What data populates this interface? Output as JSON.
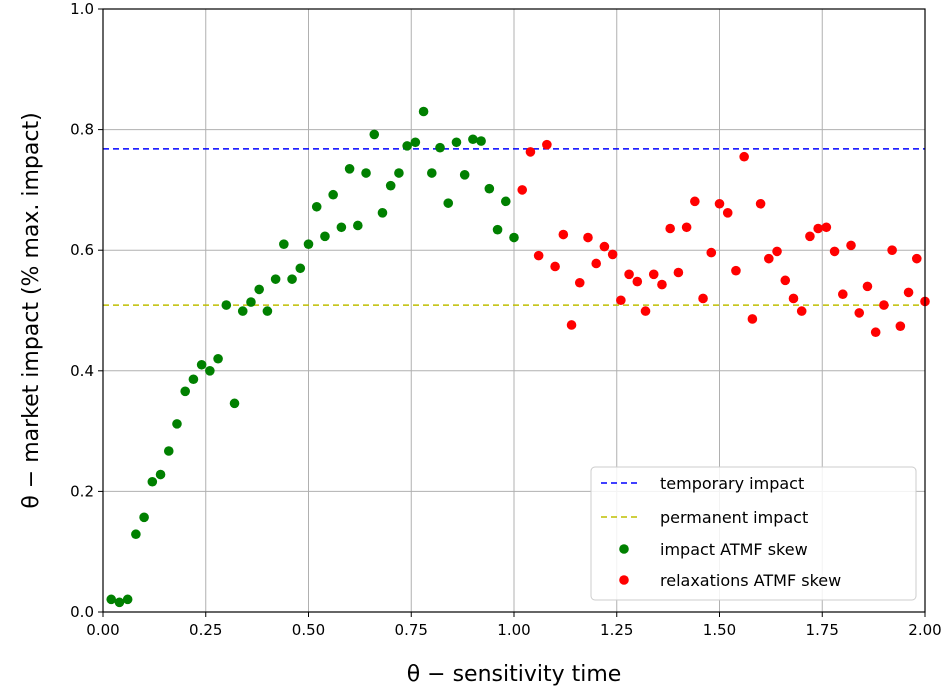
{
  "chart_data": {
    "type": "scatter",
    "xlabel": "θ − sensitivity time",
    "ylabel": "θ − market impact (% max. impact)",
    "xlim": [
      0,
      2.0
    ],
    "ylim": [
      0,
      1.0
    ],
    "xticks": [
      0.0,
      0.25,
      0.5,
      0.75,
      1.0,
      1.25,
      1.5,
      1.75,
      2.0
    ],
    "yticks": [
      0.0,
      0.2,
      0.4,
      0.6,
      0.8,
      1.0
    ],
    "xtick_labels": [
      "0.00",
      "0.25",
      "0.50",
      "0.75",
      "1.00",
      "1.25",
      "1.50",
      "1.75",
      "2.00"
    ],
    "ytick_labels": [
      "0.0",
      "0.2",
      "0.4",
      "0.6",
      "0.8",
      "1.0"
    ],
    "grid": true,
    "legend_position": "lower-right",
    "lines": [
      {
        "name": "temporary impact",
        "y": 0.768,
        "color": "#0000ff",
        "style": "dashed"
      },
      {
        "name": "permanent impact",
        "y": 0.509,
        "color": "#bfbf00",
        "style": "dashed"
      }
    ],
    "series": [
      {
        "name": "impact ATMF skew",
        "color": "#008000",
        "points": [
          [
            0.02,
            0.021
          ],
          [
            0.04,
            0.016
          ],
          [
            0.06,
            0.021
          ],
          [
            0.08,
            0.129
          ],
          [
            0.1,
            0.157
          ],
          [
            0.12,
            0.216
          ],
          [
            0.14,
            0.228
          ],
          [
            0.16,
            0.267
          ],
          [
            0.18,
            0.312
          ],
          [
            0.2,
            0.366
          ],
          [
            0.22,
            0.386
          ],
          [
            0.24,
            0.41
          ],
          [
            0.26,
            0.4
          ],
          [
            0.28,
            0.42
          ],
          [
            0.3,
            0.509
          ],
          [
            0.32,
            0.346
          ],
          [
            0.34,
            0.499
          ],
          [
            0.36,
            0.514
          ],
          [
            0.38,
            0.535
          ],
          [
            0.4,
            0.499
          ],
          [
            0.42,
            0.552
          ],
          [
            0.44,
            0.61
          ],
          [
            0.46,
            0.552
          ],
          [
            0.48,
            0.57
          ],
          [
            0.5,
            0.61
          ],
          [
            0.52,
            0.672
          ],
          [
            0.54,
            0.623
          ],
          [
            0.56,
            0.692
          ],
          [
            0.58,
            0.638
          ],
          [
            0.6,
            0.735
          ],
          [
            0.62,
            0.641
          ],
          [
            0.64,
            0.728
          ],
          [
            0.66,
            0.792
          ],
          [
            0.68,
            0.662
          ],
          [
            0.7,
            0.707
          ],
          [
            0.72,
            0.728
          ],
          [
            0.74,
            0.773
          ],
          [
            0.76,
            0.779
          ],
          [
            0.78,
            0.83
          ],
          [
            0.8,
            0.728
          ],
          [
            0.82,
            0.77
          ],
          [
            0.84,
            0.678
          ],
          [
            0.86,
            0.779
          ],
          [
            0.88,
            0.725
          ],
          [
            0.9,
            0.784
          ],
          [
            0.92,
            0.781
          ],
          [
            0.94,
            0.702
          ],
          [
            0.96,
            0.634
          ],
          [
            0.98,
            0.681
          ],
          [
            1.0,
            0.621
          ]
        ]
      },
      {
        "name": "relaxations ATMF skew",
        "color": "#ff0000",
        "points": [
          [
            1.02,
            0.7
          ],
          [
            1.04,
            0.763
          ],
          [
            1.06,
            0.591
          ],
          [
            1.08,
            0.775
          ],
          [
            1.1,
            0.573
          ],
          [
            1.12,
            0.626
          ],
          [
            1.14,
            0.476
          ],
          [
            1.16,
            0.546
          ],
          [
            1.18,
            0.621
          ],
          [
            1.2,
            0.578
          ],
          [
            1.22,
            0.606
          ],
          [
            1.24,
            0.593
          ],
          [
            1.26,
            0.517
          ],
          [
            1.28,
            0.56
          ],
          [
            1.3,
            0.548
          ],
          [
            1.32,
            0.499
          ],
          [
            1.34,
            0.56
          ],
          [
            1.36,
            0.543
          ],
          [
            1.38,
            0.636
          ],
          [
            1.4,
            0.563
          ],
          [
            1.42,
            0.638
          ],
          [
            1.44,
            0.681
          ],
          [
            1.46,
            0.52
          ],
          [
            1.48,
            0.596
          ],
          [
            1.5,
            0.677
          ],
          [
            1.52,
            0.662
          ],
          [
            1.54,
            0.566
          ],
          [
            1.56,
            0.755
          ],
          [
            1.58,
            0.486
          ],
          [
            1.6,
            0.677
          ],
          [
            1.62,
            0.586
          ],
          [
            1.64,
            0.598
          ],
          [
            1.66,
            0.55
          ],
          [
            1.68,
            0.52
          ],
          [
            1.7,
            0.499
          ],
          [
            1.72,
            0.623
          ],
          [
            1.74,
            0.636
          ],
          [
            1.76,
            0.638
          ],
          [
            1.78,
            0.598
          ],
          [
            1.8,
            0.527
          ],
          [
            1.82,
            0.608
          ],
          [
            1.84,
            0.496
          ],
          [
            1.86,
            0.54
          ],
          [
            1.88,
            0.464
          ],
          [
            1.9,
            0.509
          ],
          [
            1.92,
            0.6
          ],
          [
            1.94,
            0.474
          ],
          [
            1.96,
            0.53
          ],
          [
            1.98,
            0.586
          ],
          [
            2.0,
            0.515
          ]
        ]
      }
    ]
  }
}
